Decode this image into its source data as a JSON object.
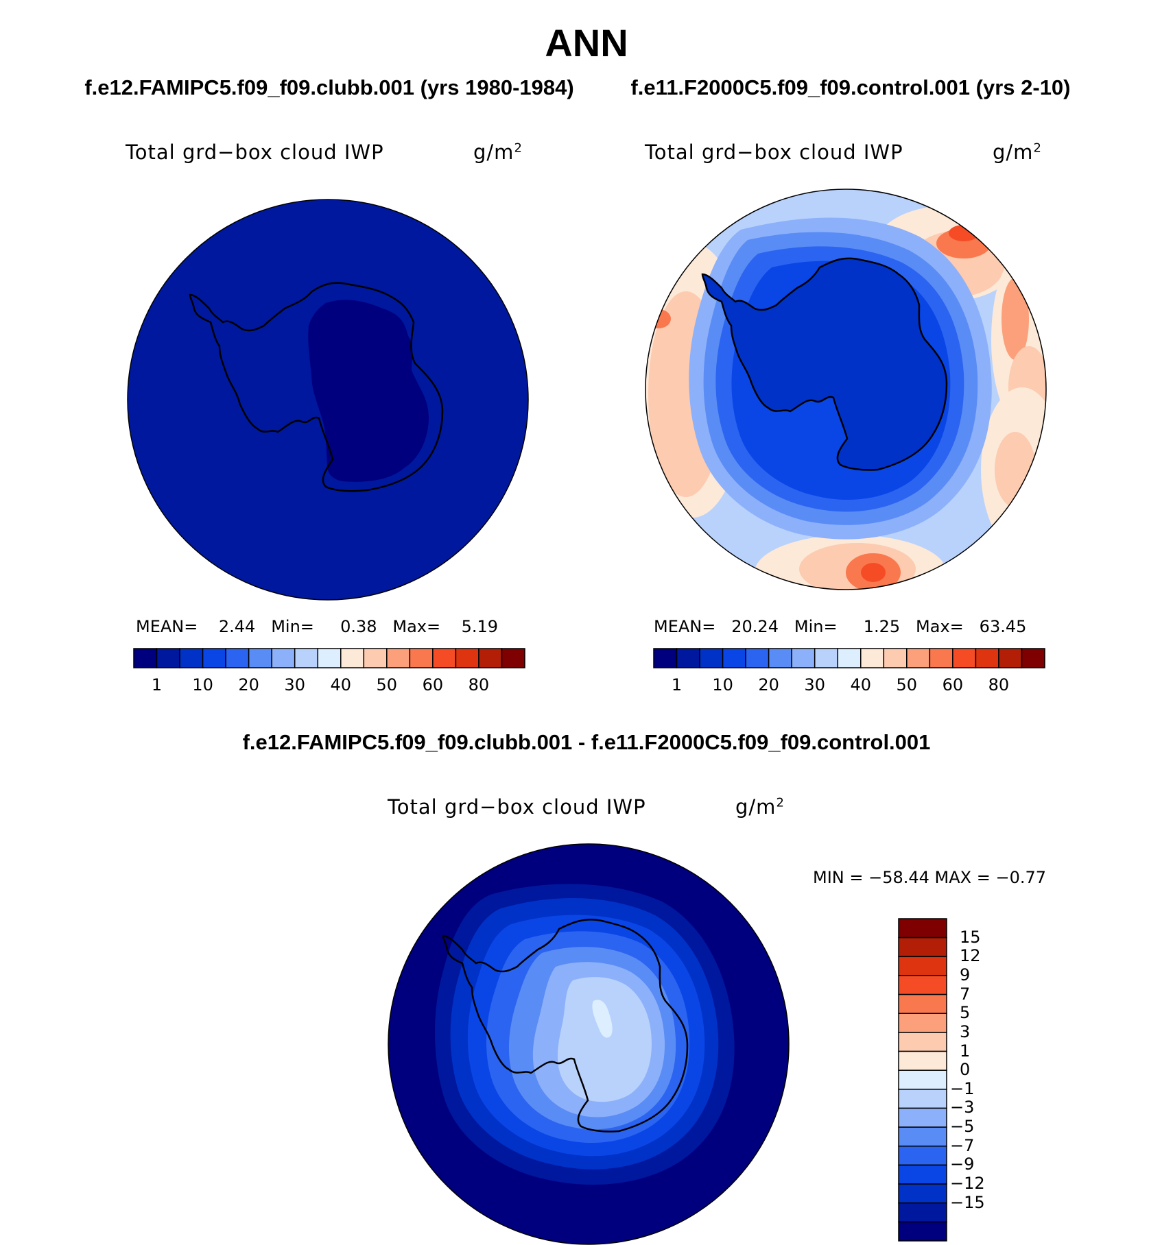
{
  "title": "ANN",
  "panels": [
    {
      "case": "f.e12.FAMIPC5.f09_f09.clubb.001 (yrs 1980-1984)",
      "variable": "Total grd−box cloud IWP",
      "units": "g/m",
      "units_exponent": "2",
      "stats": {
        "mean_label": "MEAN=",
        "mean": "2.44",
        "min_label": "Min=",
        "min": "0.38",
        "max_label": "Max=",
        "max": "5.19"
      }
    },
    {
      "case": "f.e11.F2000C5.f09_f09.control.001 (yrs 2-10)",
      "variable": "Total grd−box cloud IWP",
      "units": "g/m",
      "units_exponent": "2",
      "stats": {
        "mean_label": "MEAN=",
        "mean": "20.24",
        "min_label": "Min=",
        "min": "1.25",
        "max_label": "Max=",
        "max": "63.45"
      }
    }
  ],
  "diff_panel": {
    "case": "f.e12.FAMIPC5.f09_f09.clubb.001 - f.e11.F2000C5.f09_f09.control.001",
    "variable": "Total grd−box cloud IWP",
    "units": "g/m",
    "units_exponent": "2",
    "minmax": "MIN = −58.44 MAX =  −0.77"
  },
  "colorbar": {
    "colors": [
      "#00007f",
      "#00189e",
      "#0032c8",
      "#0a46e6",
      "#2a64f0",
      "#5a8cf5",
      "#8cb0fa",
      "#b8d2fc",
      "#ddeefe",
      "#fde9d8",
      "#fccbb0",
      "#fba07a",
      "#f9784e",
      "#f54c26",
      "#de3410",
      "#b21f06",
      "#7f0000"
    ],
    "tick_labels": [
      "1",
      "10",
      "20",
      "30",
      "40",
      "50",
      "60",
      "80"
    ]
  },
  "diff_colorbar": {
    "colors": [
      "#7f0000",
      "#b21f06",
      "#de3410",
      "#f54c26",
      "#f9784e",
      "#fba07a",
      "#fccbb0",
      "#fde9d8",
      "#ddeefe",
      "#b8d2fc",
      "#8cb0fa",
      "#5a8cf5",
      "#2a64f0",
      "#0a46e6",
      "#0032c8",
      "#00189e",
      "#00007f"
    ],
    "tick_labels": [
      "15",
      "12",
      "9",
      "7",
      "5",
      "3",
      "1",
      "0",
      "−1",
      "−3",
      "−5",
      "−7",
      "−9",
      "−12",
      "−15"
    ]
  }
}
